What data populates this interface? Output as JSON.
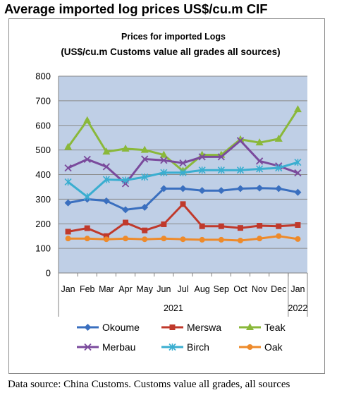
{
  "heading": "Average imported log prices US$/cu.m CIF",
  "source_note": "Data source: China Customs. Customs value all grades, all sources",
  "colors": {
    "Okoume": "#3a6fbf",
    "Merswa": "#c0392b",
    "Teak": "#8ab83a",
    "Merbau": "#7a4a9c",
    "Birch": "#3aaed0",
    "Oak": "#ee8a2a",
    "plot_background": "#bfcfe6",
    "gridline": "#8a8a8a"
  },
  "chart_data": {
    "type": "line",
    "title": "Prices for imported Logs",
    "subtitle": "(US$/cu.m Customs value all grades all sources)",
    "xlabel": "",
    "ylabel": "",
    "ylim": [
      0,
      800
    ],
    "yticks": [
      "0",
      "100",
      "200",
      "300",
      "400",
      "500",
      "600",
      "700",
      "800"
    ],
    "categories": [
      "Jan",
      "Feb",
      "Mar",
      "Apr",
      "May",
      "Jun",
      "Jul",
      "Aug",
      "Sep",
      "Oct",
      "Nov",
      "Dec",
      "Jan"
    ],
    "year_groups": [
      {
        "label": "2021",
        "from": 0,
        "to": 11
      },
      {
        "label": "2022",
        "from": 12,
        "to": 12
      }
    ],
    "grid": true,
    "legend_position": "bottom",
    "series": [
      {
        "name": "Okoume",
        "marker": "diamond",
        "values": [
          285,
          300,
          293,
          257,
          267,
          343,
          343,
          335,
          335,
          343,
          345,
          343,
          328
        ]
      },
      {
        "name": "Merswa",
        "marker": "square",
        "values": [
          168,
          182,
          150,
          205,
          173,
          198,
          280,
          190,
          190,
          183,
          192,
          190,
          195
        ]
      },
      {
        "name": "Teak",
        "marker": "triangle",
        "values": [
          512,
          620,
          493,
          505,
          500,
          480,
          415,
          480,
          480,
          543,
          530,
          545,
          665
        ]
      },
      {
        "name": "Merbau",
        "marker": "x",
        "values": [
          427,
          462,
          432,
          363,
          463,
          458,
          447,
          472,
          472,
          538,
          455,
          435,
          407
        ]
      },
      {
        "name": "Birch",
        "marker": "star",
        "values": [
          370,
          310,
          380,
          377,
          390,
          408,
          408,
          418,
          418,
          418,
          423,
          427,
          450
        ]
      },
      {
        "name": "Oak",
        "marker": "circle",
        "values": [
          140,
          140,
          137,
          140,
          137,
          140,
          137,
          135,
          135,
          132,
          140,
          150,
          138
        ]
      }
    ]
  }
}
